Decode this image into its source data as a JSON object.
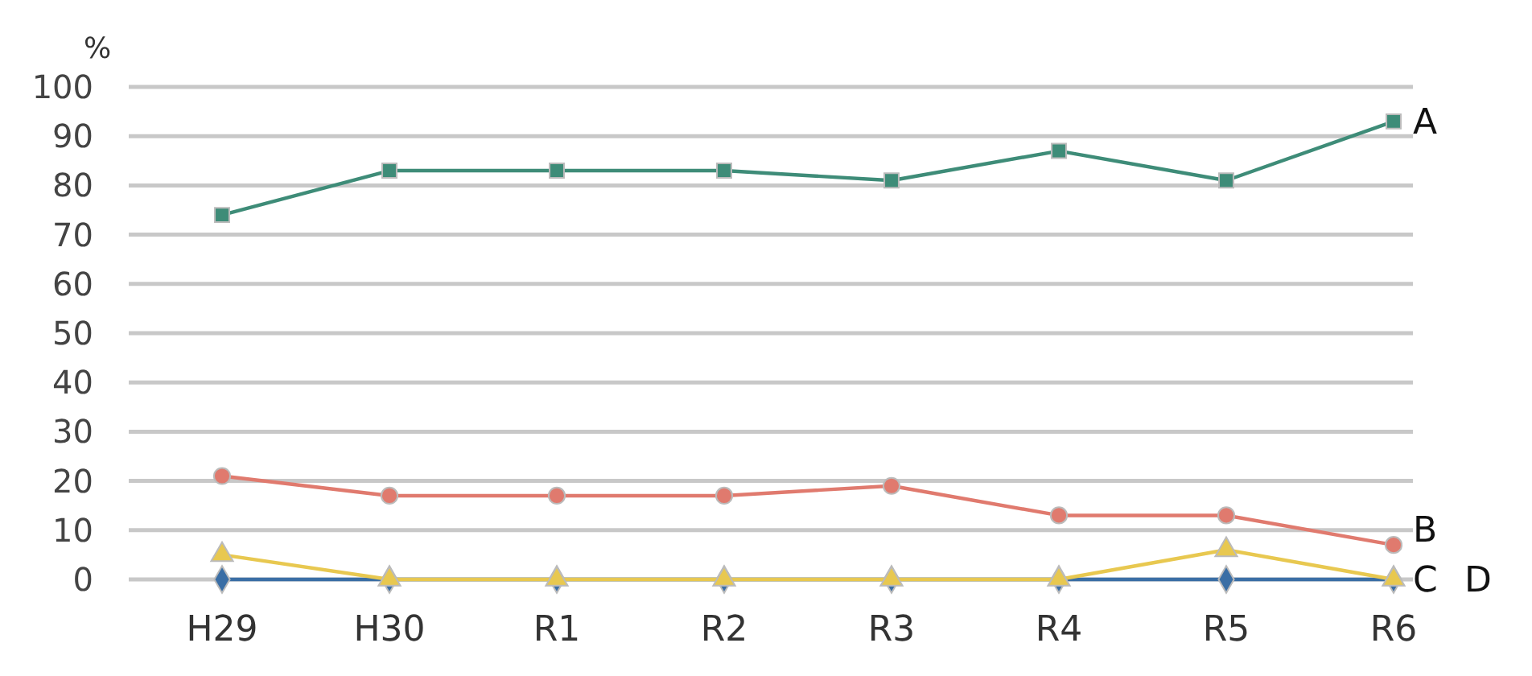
{
  "chart_data": {
    "type": "line",
    "ylabel": "%",
    "categories": [
      "H29",
      "H30",
      "R1",
      "R2",
      "R3",
      "R4",
      "R5",
      "R6"
    ],
    "series": [
      {
        "name": "A",
        "color": "#3e8c78",
        "marker": "square",
        "values": [
          74,
          83,
          83,
          83,
          81,
          87,
          81,
          93
        ]
      },
      {
        "name": "B",
        "color": "#e07a6e",
        "marker": "circle",
        "values": [
          21,
          17,
          17,
          17,
          19,
          13,
          13,
          7
        ]
      },
      {
        "name": "C",
        "color": "#e8c850",
        "marker": "triangle",
        "values": [
          5,
          0,
          0,
          0,
          0,
          0,
          6,
          0
        ]
      },
      {
        "name": "D",
        "color": "#3a6ea5",
        "marker": "diamond",
        "values": [
          0,
          0,
          0,
          0,
          0,
          0,
          0,
          0
        ]
      }
    ],
    "ylim": [
      0,
      100
    ],
    "yticks": [
      0,
      10,
      20,
      30,
      40,
      50,
      60,
      70,
      80,
      90,
      100
    ],
    "grid": "y"
  }
}
